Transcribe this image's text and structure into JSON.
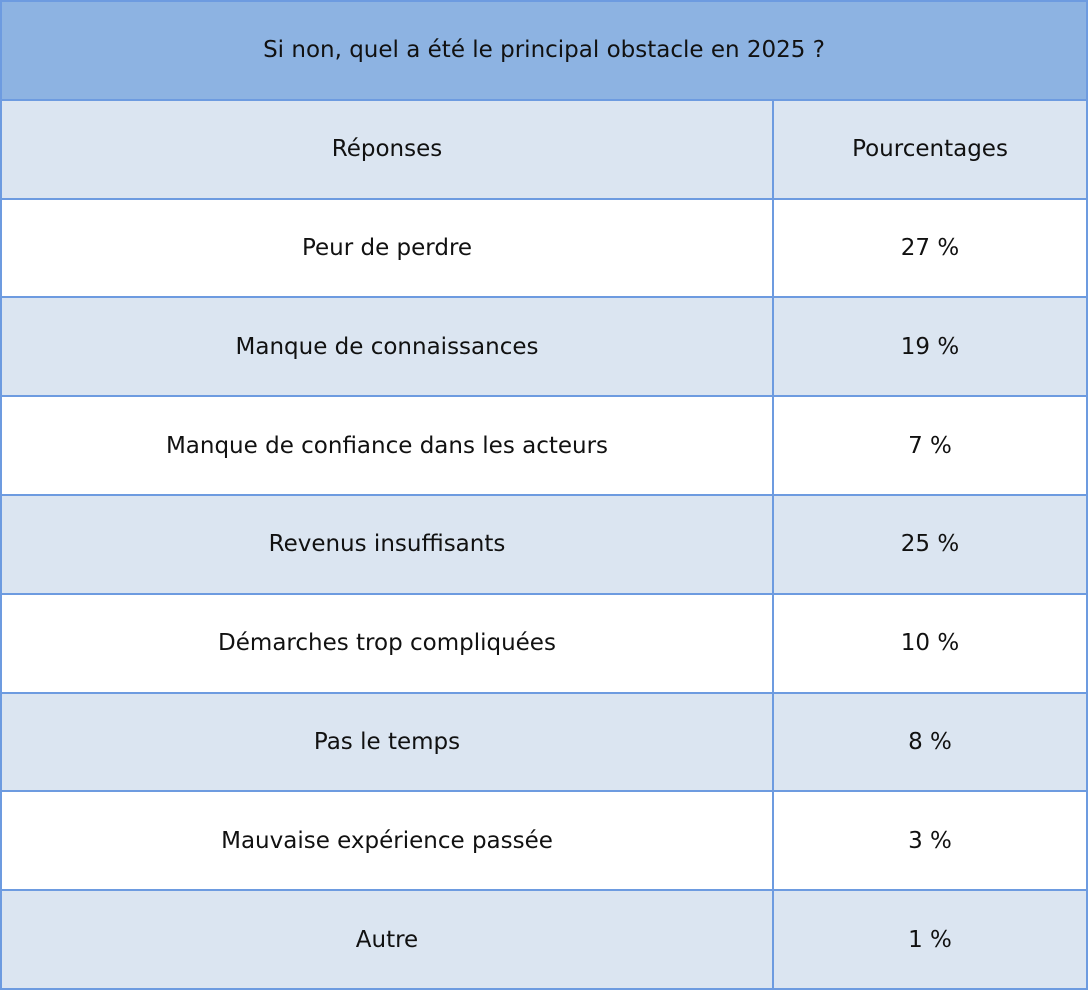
{
  "title": "Si non, quel a été le principal obstacle en 2025 ?",
  "table": {
    "header": [
      "Réponses",
      "Pourcentages"
    ],
    "rows": [
      [
        "Peur de perdre",
        "27 %"
      ],
      [
        "Manque de connaissances",
        "19 %"
      ],
      [
        "Manque de confiance dans les acteurs",
        "7 %"
      ],
      [
        "Revenus insuffisants",
        "25 %"
      ],
      [
        "Démarches trop compliquées",
        "10 %"
      ],
      [
        "Pas le temps",
        "8 %"
      ],
      [
        "Mauvaise expérience passée",
        "3 %"
      ],
      [
        "Autre",
        "1 %"
      ]
    ]
  }
}
